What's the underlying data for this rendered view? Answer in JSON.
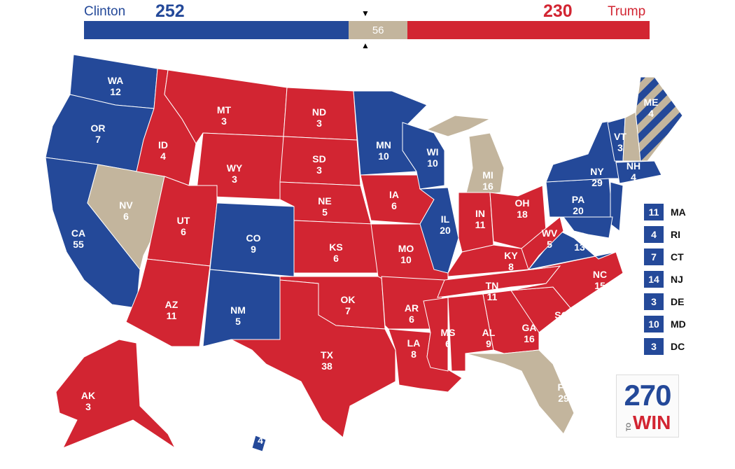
{
  "header": {
    "left_candidate": "Clinton",
    "left_total": "252",
    "right_candidate": "Trump",
    "right_total": "230",
    "tossup_total": "56"
  },
  "colors": {
    "dem": "#244999",
    "rep": "#d22532",
    "tossup": "#c3b59d"
  },
  "states": [
    {
      "abbr": "WA",
      "votes": "12",
      "winner": "dem"
    },
    {
      "abbr": "OR",
      "votes": "7",
      "winner": "dem"
    },
    {
      "abbr": "CA",
      "votes": "55",
      "winner": "dem"
    },
    {
      "abbr": "NV",
      "votes": "6",
      "winner": "tossup"
    },
    {
      "abbr": "ID",
      "votes": "4",
      "winner": "rep"
    },
    {
      "abbr": "MT",
      "votes": "3",
      "winner": "rep"
    },
    {
      "abbr": "WY",
      "votes": "3",
      "winner": "rep"
    },
    {
      "abbr": "UT",
      "votes": "6",
      "winner": "rep"
    },
    {
      "abbr": "CO",
      "votes": "9",
      "winner": "dem"
    },
    {
      "abbr": "AZ",
      "votes": "11",
      "winner": "rep"
    },
    {
      "abbr": "NM",
      "votes": "5",
      "winner": "dem"
    },
    {
      "abbr": "ND",
      "votes": "3",
      "winner": "rep"
    },
    {
      "abbr": "SD",
      "votes": "3",
      "winner": "rep"
    },
    {
      "abbr": "NE",
      "votes": "5",
      "winner": "rep"
    },
    {
      "abbr": "KS",
      "votes": "6",
      "winner": "rep"
    },
    {
      "abbr": "OK",
      "votes": "7",
      "winner": "rep"
    },
    {
      "abbr": "TX",
      "votes": "38",
      "winner": "rep"
    },
    {
      "abbr": "MN",
      "votes": "10",
      "winner": "dem"
    },
    {
      "abbr": "IA",
      "votes": "6",
      "winner": "rep"
    },
    {
      "abbr": "MO",
      "votes": "10",
      "winner": "rep"
    },
    {
      "abbr": "AR",
      "votes": "6",
      "winner": "rep"
    },
    {
      "abbr": "LA",
      "votes": "8",
      "winner": "rep"
    },
    {
      "abbr": "WI",
      "votes": "10",
      "winner": "dem"
    },
    {
      "abbr": "IL",
      "votes": "20",
      "winner": "dem"
    },
    {
      "abbr": "MI",
      "votes": "16",
      "winner": "tossup"
    },
    {
      "abbr": "IN",
      "votes": "11",
      "winner": "rep"
    },
    {
      "abbr": "OH",
      "votes": "18",
      "winner": "rep"
    },
    {
      "abbr": "KY",
      "votes": "8",
      "winner": "rep"
    },
    {
      "abbr": "TN",
      "votes": "11",
      "winner": "rep"
    },
    {
      "abbr": "MS",
      "votes": "6",
      "winner": "rep"
    },
    {
      "abbr": "AL",
      "votes": "9",
      "winner": "rep"
    },
    {
      "abbr": "GA",
      "votes": "16",
      "winner": "rep"
    },
    {
      "abbr": "FL",
      "votes": "29",
      "winner": "tossup"
    },
    {
      "abbr": "SC",
      "votes": "9",
      "winner": "rep"
    },
    {
      "abbr": "NC",
      "votes": "15",
      "winner": "rep"
    },
    {
      "abbr": "VA",
      "votes": "13",
      "winner": "dem"
    },
    {
      "abbr": "WV",
      "votes": "5",
      "winner": "rep"
    },
    {
      "abbr": "PA",
      "votes": "20",
      "winner": "dem"
    },
    {
      "abbr": "NY",
      "votes": "29",
      "winner": "dem"
    },
    {
      "abbr": "VT",
      "votes": "3",
      "winner": "dem"
    },
    {
      "abbr": "NH",
      "votes": "4",
      "winner": "tossup"
    },
    {
      "abbr": "ME",
      "votes": "4",
      "winner": "split"
    },
    {
      "abbr": "AK",
      "votes": "3",
      "winner": "rep"
    },
    {
      "abbr": "HI",
      "votes": "4",
      "winner": "dem"
    }
  ],
  "small_states": [
    {
      "abbr": "MA",
      "votes": "11"
    },
    {
      "abbr": "RI",
      "votes": "4"
    },
    {
      "abbr": "CT",
      "votes": "7"
    },
    {
      "abbr": "NJ",
      "votes": "14"
    },
    {
      "abbr": "DE",
      "votes": "3"
    },
    {
      "abbr": "MD",
      "votes": "10"
    },
    {
      "abbr": "DC",
      "votes": "3"
    }
  ],
  "logo": {
    "number": "270",
    "to": "TO",
    "win": "WIN"
  }
}
